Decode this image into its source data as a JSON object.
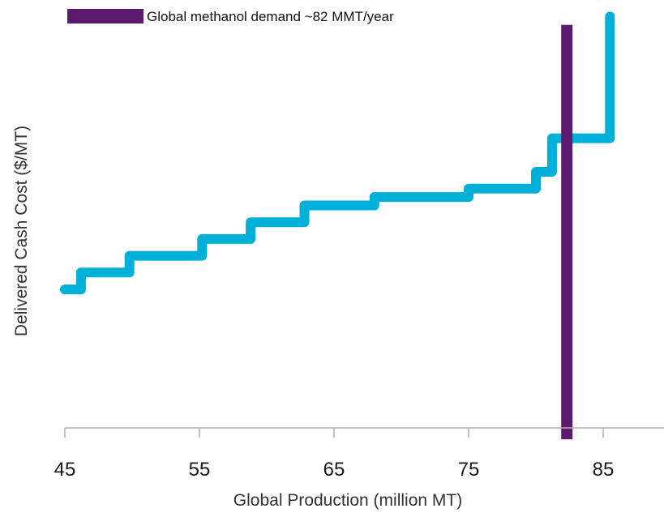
{
  "chart_data": {
    "type": "line",
    "title": "",
    "xlabel": "Global Production (million MT)",
    "ylabel": "Delivered Cash Cost ($/MT)",
    "xlim": [
      45,
      89
    ],
    "ylim": [
      0,
      100
    ],
    "x_ticks": [
      "45",
      "55",
      "65",
      "75",
      "85"
    ],
    "y_ticks_shown": false,
    "grid": false,
    "legend_position": "top-left",
    "series": [
      {
        "kind": "step-curve",
        "color": "#00B0D8",
        "points": [
          [
            45,
            33
          ],
          [
            46.2,
            33
          ],
          [
            46.2,
            37
          ],
          [
            49.8,
            37
          ],
          [
            49.8,
            41
          ],
          [
            55.2,
            41
          ],
          [
            55.2,
            45
          ],
          [
            58.8,
            45
          ],
          [
            58.8,
            49
          ],
          [
            62.8,
            49
          ],
          [
            62.8,
            53
          ],
          [
            68,
            53
          ],
          [
            68,
            55
          ],
          [
            75,
            55
          ],
          [
            75,
            57
          ],
          [
            80,
            57
          ],
          [
            80,
            61
          ],
          [
            81.2,
            61
          ],
          [
            81.2,
            69
          ],
          [
            85.5,
            69
          ],
          [
            85.5,
            98
          ]
        ]
      },
      {
        "name": "Global methanol demand ~82 MMT/year",
        "kind": "vertical-bar",
        "color": "#5C1A6E",
        "x": 82.3,
        "y_range": [
          0,
          96
        ]
      }
    ]
  }
}
